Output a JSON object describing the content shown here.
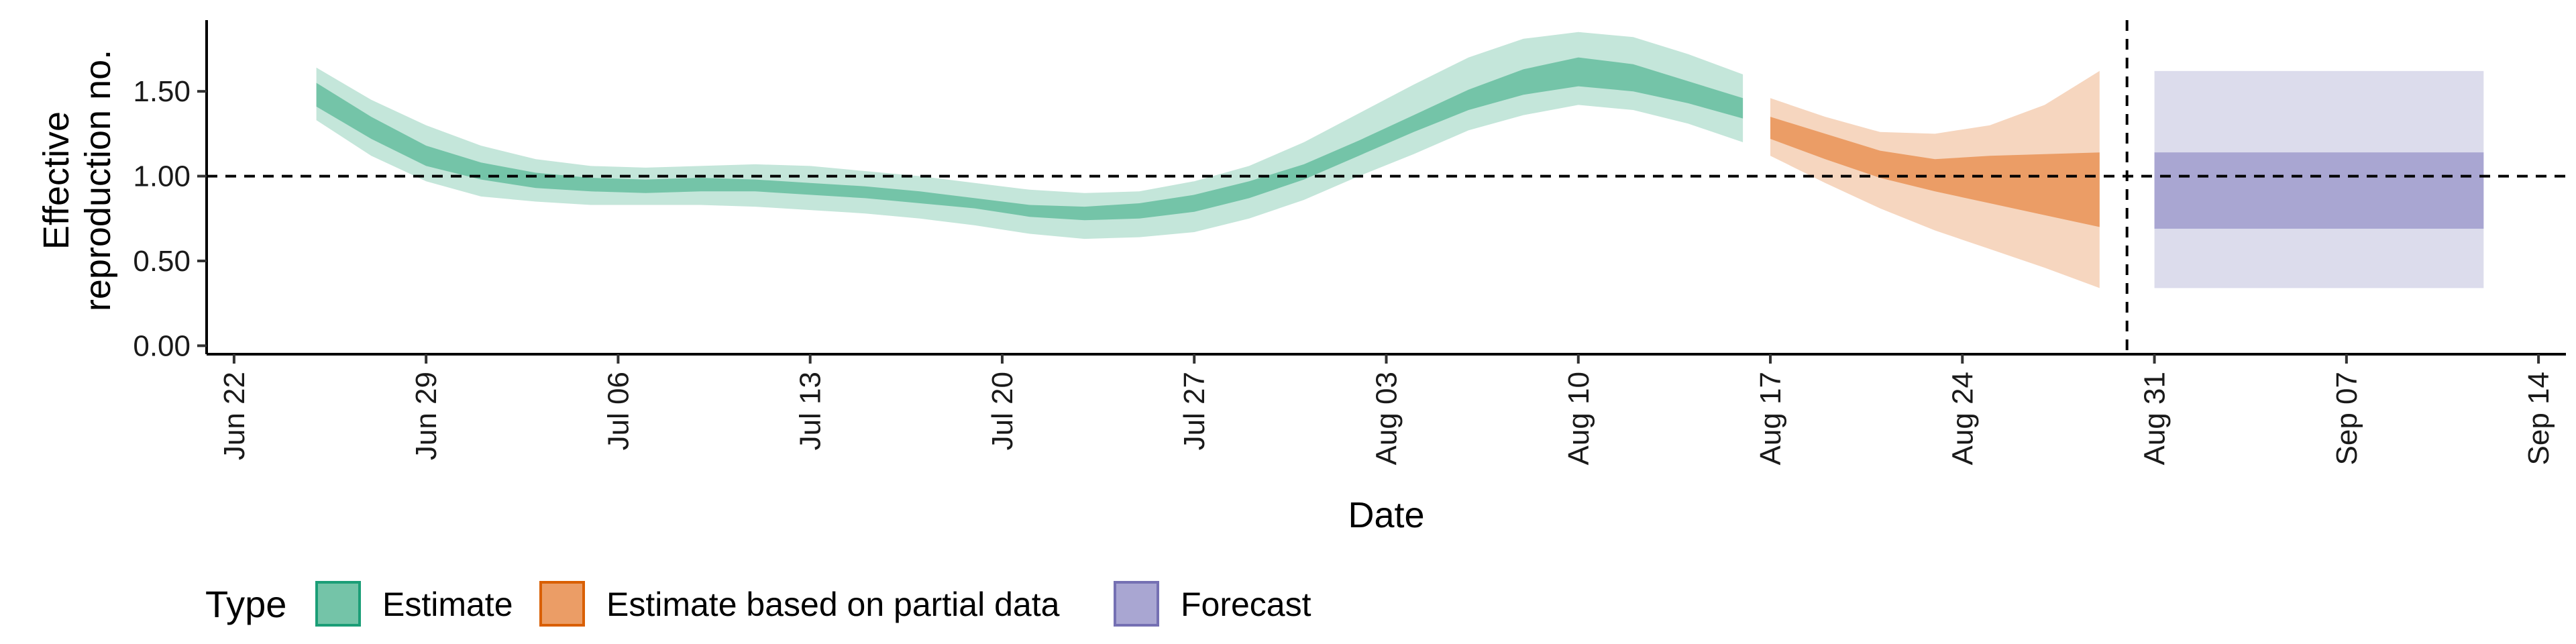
{
  "chart_data": {
    "type": "area",
    "xlabel": "Date",
    "ylabel_lines": [
      "Effective",
      "reproduction no."
    ],
    "x_axis": {
      "type": "date",
      "range": [
        "2020-06-21",
        "2020-09-15"
      ],
      "ticks": [
        {
          "date": "2020-06-22",
          "label": "Jun 22"
        },
        {
          "date": "2020-06-29",
          "label": "Jun 29"
        },
        {
          "date": "2020-07-06",
          "label": "Jul 06"
        },
        {
          "date": "2020-07-13",
          "label": "Jul 13"
        },
        {
          "date": "2020-07-20",
          "label": "Jul 20"
        },
        {
          "date": "2020-07-27",
          "label": "Jul 27"
        },
        {
          "date": "2020-08-03",
          "label": "Aug 03"
        },
        {
          "date": "2020-08-10",
          "label": "Aug 10"
        },
        {
          "date": "2020-08-17",
          "label": "Aug 17"
        },
        {
          "date": "2020-08-24",
          "label": "Aug 24"
        },
        {
          "date": "2020-08-31",
          "label": "Aug 31"
        },
        {
          "date": "2020-09-07",
          "label": "Sep 07"
        },
        {
          "date": "2020-09-14",
          "label": "Sep 14"
        }
      ]
    },
    "y_axis": {
      "range": [
        -0.05,
        1.92
      ],
      "ticks": [
        {
          "value": 0.0,
          "label": "0.00"
        },
        {
          "value": 0.5,
          "label": "0.50"
        },
        {
          "value": 1.0,
          "label": "1.00"
        },
        {
          "value": 1.5,
          "label": "1.50"
        }
      ]
    },
    "reference_lines": {
      "horizontal_y": 1.0,
      "vertical_date": "2020-08-30"
    },
    "grid": false,
    "legend": {
      "title": "Type",
      "placement": "bottom-left",
      "items": [
        {
          "key": "estimate",
          "label": "Estimate",
          "fill": "#74c4a8",
          "border": "#1b9e77"
        },
        {
          "key": "partial",
          "label": "Estimate based on partial data",
          "fill": "#eb9d66",
          "border": "#d95f02"
        },
        {
          "key": "forecast",
          "label": "Forecast",
          "fill": "#a9a6d2",
          "border": "#7570b3"
        }
      ]
    },
    "series": [
      {
        "key": "estimate",
        "inner_color": "#74c4a8",
        "outer_color": "#c4e6da",
        "x": [
          "2020-06-25",
          "2020-06-27",
          "2020-06-29",
          "2020-07-01",
          "2020-07-03",
          "2020-07-05",
          "2020-07-07",
          "2020-07-09",
          "2020-07-11",
          "2020-07-13",
          "2020-07-15",
          "2020-07-17",
          "2020-07-19",
          "2020-07-21",
          "2020-07-23",
          "2020-07-25",
          "2020-07-27",
          "2020-07-29",
          "2020-07-31",
          "2020-08-02",
          "2020-08-04",
          "2020-08-06",
          "2020-08-08",
          "2020-08-10",
          "2020-08-12",
          "2020-08-14",
          "2020-08-16"
        ],
        "inner_upper": [
          1.55,
          1.35,
          1.18,
          1.08,
          1.02,
          0.99,
          0.98,
          0.99,
          0.98,
          0.96,
          0.94,
          0.91,
          0.87,
          0.83,
          0.82,
          0.84,
          0.89,
          0.97,
          1.07,
          1.21,
          1.36,
          1.51,
          1.63,
          1.7,
          1.66,
          1.56,
          1.46
        ],
        "inner_lower": [
          1.41,
          1.22,
          1.06,
          0.98,
          0.93,
          0.91,
          0.9,
          0.91,
          0.91,
          0.89,
          0.87,
          0.84,
          0.81,
          0.76,
          0.74,
          0.75,
          0.79,
          0.87,
          0.98,
          1.12,
          1.26,
          1.39,
          1.48,
          1.53,
          1.5,
          1.43,
          1.34
        ],
        "outer_upper": [
          1.64,
          1.45,
          1.3,
          1.18,
          1.1,
          1.06,
          1.05,
          1.06,
          1.07,
          1.06,
          1.03,
          1.0,
          0.96,
          0.92,
          0.9,
          0.91,
          0.97,
          1.06,
          1.2,
          1.37,
          1.54,
          1.7,
          1.81,
          1.85,
          1.82,
          1.72,
          1.6
        ],
        "outer_lower": [
          1.33,
          1.12,
          0.97,
          0.88,
          0.85,
          0.83,
          0.83,
          0.83,
          0.82,
          0.8,
          0.78,
          0.75,
          0.71,
          0.66,
          0.63,
          0.64,
          0.67,
          0.75,
          0.86,
          1.0,
          1.13,
          1.27,
          1.36,
          1.42,
          1.39,
          1.31,
          1.2
        ]
      },
      {
        "key": "partial",
        "inner_color": "#eb9d66",
        "outer_color": "#f6d6bf",
        "x": [
          "2020-08-17",
          "2020-08-19",
          "2020-08-21",
          "2020-08-23",
          "2020-08-25",
          "2020-08-27",
          "2020-08-29"
        ],
        "inner_upper": [
          1.35,
          1.25,
          1.15,
          1.1,
          1.12,
          1.13,
          1.14
        ],
        "inner_lower": [
          1.22,
          1.1,
          0.99,
          0.91,
          0.84,
          0.77,
          0.7
        ],
        "outer_upper": [
          1.46,
          1.35,
          1.26,
          1.25,
          1.3,
          1.42,
          1.62
        ],
        "outer_lower": [
          1.12,
          0.96,
          0.81,
          0.68,
          0.57,
          0.46,
          0.34
        ]
      }
    ],
    "forecast_band": {
      "key": "forecast",
      "x_start": "2020-08-31",
      "x_end": "2020-09-12",
      "inner_color": "#a9a6d2",
      "outer_color": "#dcdcec",
      "inner_lower": 0.69,
      "inner_upper": 1.14,
      "outer_lower": 0.34,
      "outer_upper": 1.62
    }
  }
}
